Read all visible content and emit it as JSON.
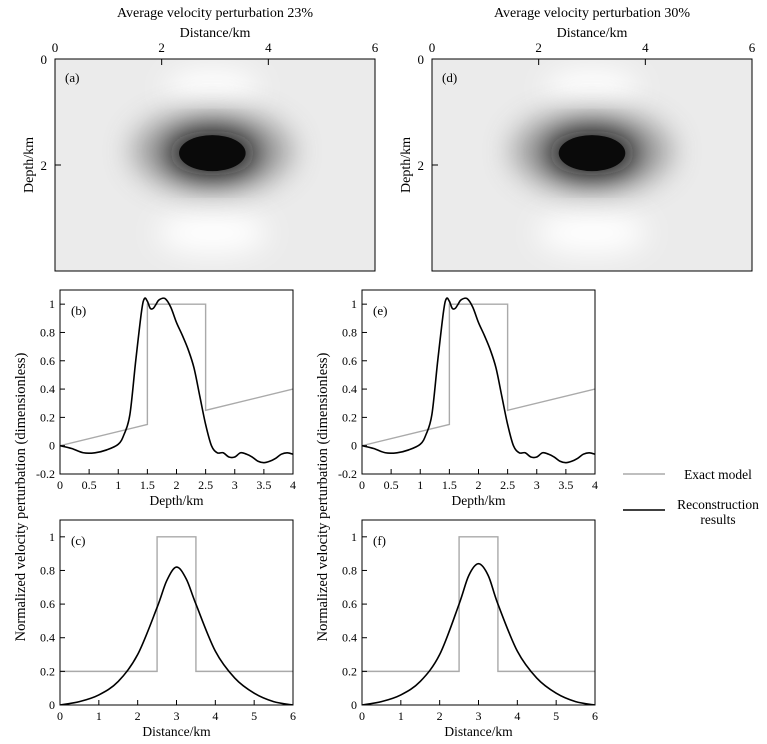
{
  "chart_data": [
    {
      "panel": "(a)",
      "type": "heatmap",
      "title": "Average velocity perturbation  23%",
      "xlabel": "Distance/km",
      "ylabel": "Depth/km",
      "xlim": [
        0,
        6
      ],
      "ylim": [
        0,
        4
      ],
      "xticks": [
        0,
        2,
        4,
        6
      ],
      "yticks": [
        0,
        2
      ],
      "colormap": "gray_r",
      "anomaly_center": [
        2.95,
        1.7
      ],
      "anomaly_semi_axes": [
        0.8,
        0.4
      ]
    },
    {
      "panel": "(d)",
      "type": "heatmap",
      "title": "Average velocity perturbation 30%",
      "xlabel": "Distance/km",
      "ylabel": "Depth/km",
      "xlim": [
        0,
        6
      ],
      "ylim": [
        0,
        4
      ],
      "xticks": [
        0,
        2,
        4,
        6
      ],
      "yticks": [
        0,
        2
      ],
      "colormap": "gray_r",
      "anomaly_center": [
        3.0,
        1.7
      ],
      "anomaly_semi_axes": [
        0.8,
        0.4
      ]
    },
    {
      "panel": "(b)",
      "type": "line",
      "xlabel": "Depth/km",
      "ylabel": "Normalized velocity perturbation (dimensionless)",
      "xlim": [
        0,
        4
      ],
      "ylim": [
        -0.2,
        1.1
      ],
      "xticks": [
        "0",
        "0.5",
        "1",
        "1.5",
        "2",
        "2.5",
        "3",
        "3.5",
        "4"
      ],
      "yticks": [
        "-0.2",
        "0",
        "0.2",
        "0.4",
        "0.6",
        "0.8",
        "1"
      ],
      "series": [
        {
          "name": "Exact model",
          "color": "#aaaaaa",
          "x": [
            0,
            1.5,
            1.5,
            2.5,
            2.5,
            4
          ],
          "y": [
            0,
            0.15,
            1.0,
            1.0,
            0.25,
            0.4
          ]
        },
        {
          "name": "Reconstruction results",
          "color": "#000000",
          "x": [
            0,
            0.2,
            0.4,
            0.6,
            0.8,
            1.0,
            1.1,
            1.2,
            1.3,
            1.4,
            1.45,
            1.5,
            1.55,
            1.6,
            1.65,
            1.7,
            1.8,
            1.9,
            2.0,
            2.1,
            2.2,
            2.3,
            2.4,
            2.5,
            2.6,
            2.7,
            2.8,
            2.9,
            3.0,
            3.1,
            3.2,
            3.3,
            3.4,
            3.5,
            3.6,
            3.7,
            3.8,
            3.9,
            4.0
          ],
          "y": [
            0,
            -0.02,
            -0.05,
            -0.05,
            -0.03,
            0.01,
            0.08,
            0.22,
            0.6,
            0.95,
            1.04,
            1.02,
            0.97,
            0.97,
            1.0,
            1.03,
            1.04,
            0.98,
            0.87,
            0.78,
            0.68,
            0.55,
            0.35,
            0.15,
            0.0,
            -0.05,
            -0.05,
            -0.08,
            -0.08,
            -0.05,
            -0.06,
            -0.08,
            -0.11,
            -0.12,
            -0.11,
            -0.09,
            -0.06,
            -0.05,
            -0.06
          ]
        }
      ]
    },
    {
      "panel": "(e)",
      "type": "line",
      "xlabel": "Depth/km",
      "ylabel": "Normalized velocity perturbation (dimensionless)",
      "xlim": [
        0,
        4
      ],
      "ylim": [
        -0.2,
        1.1
      ],
      "xticks": [
        "0",
        "0.5",
        "1",
        "1.5",
        "2",
        "2.5",
        "3",
        "3.5",
        "4"
      ],
      "yticks": [
        "-0.2",
        "0",
        "0.2",
        "0.4",
        "0.6",
        "0.8",
        "1"
      ],
      "series": [
        {
          "name": "Exact model",
          "color": "#aaaaaa",
          "x": [
            0,
            1.5,
            1.5,
            2.5,
            2.5,
            4
          ],
          "y": [
            0,
            0.15,
            1.0,
            1.0,
            0.25,
            0.4
          ]
        },
        {
          "name": "Reconstruction results",
          "color": "#000000",
          "x": [
            0,
            0.2,
            0.4,
            0.6,
            0.8,
            1.0,
            1.1,
            1.2,
            1.3,
            1.4,
            1.45,
            1.5,
            1.55,
            1.6,
            1.65,
            1.7,
            1.8,
            1.9,
            2.0,
            2.1,
            2.2,
            2.3,
            2.4,
            2.5,
            2.6,
            2.7,
            2.8,
            2.9,
            3.0,
            3.1,
            3.2,
            3.3,
            3.4,
            3.5,
            3.6,
            3.7,
            3.8,
            3.9,
            4.0
          ],
          "y": [
            0,
            -0.02,
            -0.05,
            -0.05,
            -0.03,
            0.01,
            0.08,
            0.22,
            0.6,
            0.95,
            1.04,
            1.02,
            0.97,
            0.97,
            1.0,
            1.03,
            1.04,
            0.98,
            0.87,
            0.78,
            0.68,
            0.55,
            0.35,
            0.15,
            0.0,
            -0.05,
            -0.05,
            -0.08,
            -0.08,
            -0.05,
            -0.06,
            -0.08,
            -0.11,
            -0.12,
            -0.11,
            -0.09,
            -0.06,
            -0.05,
            -0.06
          ]
        }
      ]
    },
    {
      "panel": "(c)",
      "type": "line",
      "xlabel": "Distance/km",
      "ylabel": "Normalized velocity perturbation (dimensionless)",
      "xlim": [
        0,
        6
      ],
      "ylim": [
        0,
        1.1
      ],
      "xticks": [
        "0",
        "1",
        "2",
        "3",
        "4",
        "5",
        "6"
      ],
      "yticks": [
        "0",
        "0.2",
        "0.4",
        "0.6",
        "0.8",
        "1"
      ],
      "series": [
        {
          "name": "Exact model",
          "color": "#aaaaaa",
          "x": [
            0,
            2.5,
            2.5,
            3.5,
            3.5,
            6
          ],
          "y": [
            0.2,
            0.2,
            1.0,
            1.0,
            0.2,
            0.2
          ]
        },
        {
          "name": "Reconstruction results",
          "color": "#000000",
          "x": [
            0,
            0.5,
            1.0,
            1.5,
            2.0,
            2.5,
            2.75,
            3.0,
            3.25,
            3.5,
            4.0,
            4.5,
            5.0,
            5.5,
            6.0
          ],
          "y": [
            0.0,
            0.02,
            0.06,
            0.14,
            0.3,
            0.58,
            0.74,
            0.82,
            0.75,
            0.6,
            0.32,
            0.16,
            0.07,
            0.02,
            0.0
          ]
        }
      ]
    },
    {
      "panel": "(f)",
      "type": "line",
      "xlabel": "Distance/km",
      "ylabel": "Normalized velocity perturbation (dimensionless)",
      "xlim": [
        0,
        6
      ],
      "ylim": [
        0,
        1.1
      ],
      "xticks": [
        "0",
        "1",
        "2",
        "3",
        "4",
        "5",
        "6"
      ],
      "yticks": [
        "0",
        "0.2",
        "0.4",
        "0.6",
        "0.8",
        "1"
      ],
      "series": [
        {
          "name": "Exact model",
          "color": "#aaaaaa",
          "x": [
            0,
            2.5,
            2.5,
            3.5,
            3.5,
            6
          ],
          "y": [
            0.2,
            0.2,
            1.0,
            1.0,
            0.2,
            0.2
          ]
        },
        {
          "name": "Reconstruction results",
          "color": "#000000",
          "x": [
            0,
            0.5,
            1.0,
            1.5,
            2.0,
            2.5,
            2.75,
            3.0,
            3.25,
            3.5,
            4.0,
            4.5,
            5.0,
            5.5,
            6.0
          ],
          "y": [
            0.0,
            0.02,
            0.06,
            0.14,
            0.3,
            0.6,
            0.77,
            0.84,
            0.77,
            0.6,
            0.32,
            0.16,
            0.07,
            0.02,
            0.0
          ]
        }
      ]
    }
  ],
  "legend": {
    "placement": "right",
    "items": [
      {
        "label_lines": [
          "Exact model"
        ],
        "color": "#aaaaaa"
      },
      {
        "label_lines": [
          "Reconstruction",
          "results"
        ],
        "color": "#000000"
      }
    ]
  }
}
